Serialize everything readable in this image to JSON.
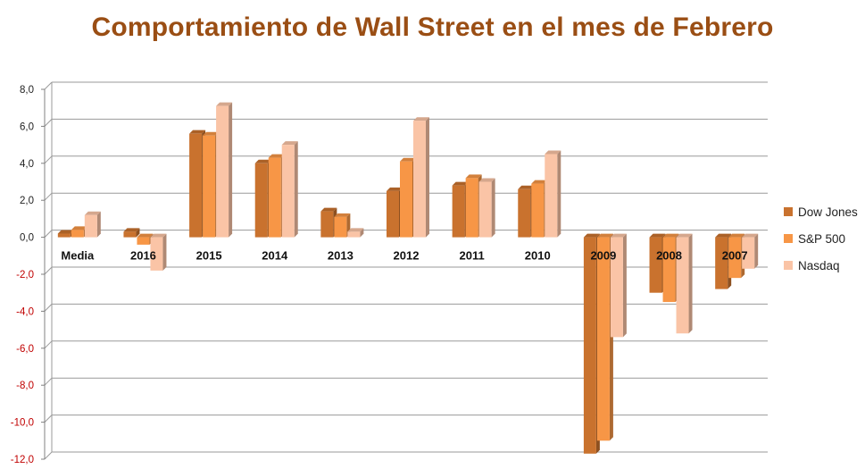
{
  "chart_data": {
    "type": "bar",
    "title": "Comportamiento de Wall Street en el mes de Febrero",
    "xlabel": "",
    "ylabel": "",
    "ylim": [
      -12,
      8
    ],
    "yticks": [
      "8,0",
      "6,0",
      "4,0",
      "2,0",
      "0,0",
      "-2,0",
      "-4,0",
      "-6,0",
      "-8,0",
      "-10,0",
      "-12,0"
    ],
    "categories": [
      "Media",
      "2016",
      "2015",
      "2014",
      "2013",
      "2012",
      "2011",
      "2010",
      "2009",
      "2008",
      "2007"
    ],
    "series": [
      {
        "name": "Dow Jones",
        "color": "#c9722e",
        "values": [
          0.2,
          0.3,
          5.6,
          4.0,
          1.4,
          2.5,
          2.8,
          2.6,
          -11.7,
          -3.0,
          -2.8
        ]
      },
      {
        "name": "S&P 500",
        "color": "#f79646",
        "values": [
          0.4,
          -0.4,
          5.5,
          4.3,
          1.1,
          4.1,
          3.2,
          2.9,
          -11.0,
          -3.5,
          -2.2
        ]
      },
      {
        "name": "Nasdaq",
        "color": "#fac4a6",
        "values": [
          1.2,
          -1.8,
          7.1,
          5.0,
          0.3,
          6.3,
          3.0,
          4.5,
          -5.4,
          -5.2,
          -1.7
        ]
      }
    ],
    "grid": true,
    "legend_position": "right"
  }
}
